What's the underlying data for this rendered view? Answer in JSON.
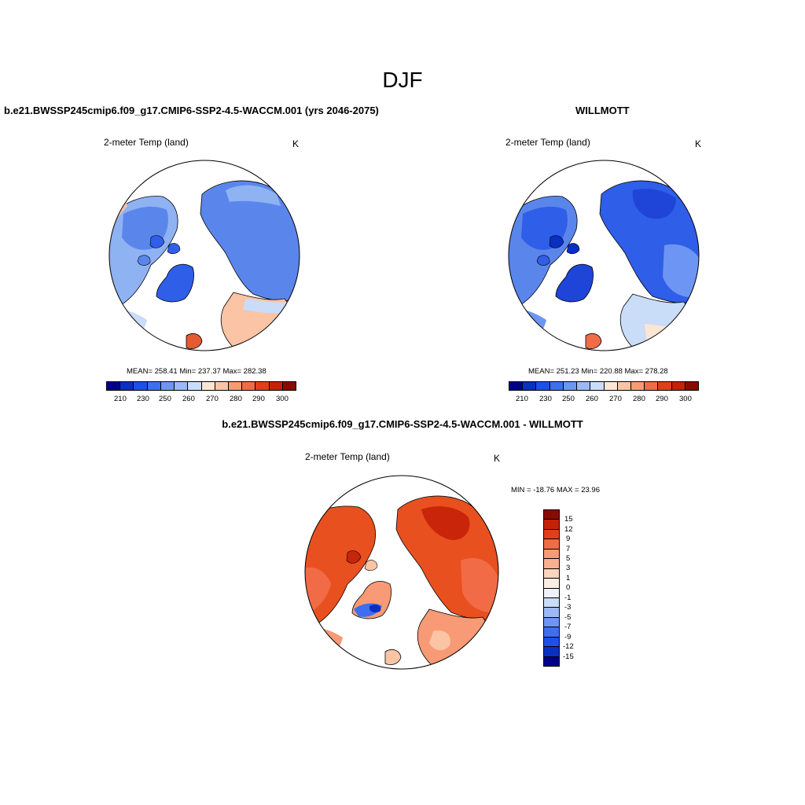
{
  "figure": {
    "title": "DJF",
    "panels": [
      {
        "title": "b.e21.BWSSP245cmip6.f09_g17.CMIP6-SSP2-4.5-WACCM.001 (yrs 2046-2075)",
        "variable": "2-meter Temp (land)",
        "units": "K",
        "stats": "MEAN= 258.41  Min= 237.37  Max= 282.38",
        "colorbar_labels": [
          "210",
          "230",
          "250",
          "260",
          "270",
          "280",
          "290",
          "300"
        ]
      },
      {
        "title": "WILLMOTT",
        "variable": "2-meter Temp (land)",
        "units": "K",
        "stats": "MEAN= 251.23  Min= 220.88  Max= 278.28",
        "colorbar_labels": [
          "210",
          "230",
          "250",
          "260",
          "270",
          "280",
          "290",
          "300"
        ]
      },
      {
        "title": "b.e21.BWSSP245cmip6.f09_g17.CMIP6-SSP2-4.5-WACCM.001 - WILLMOTT",
        "variable": "2-meter Temp (land)",
        "units": "K",
        "stats": "MIN = -18.76 MAX =  23.96",
        "colorbar_labels": [
          "15",
          "12",
          "9",
          "7",
          "5",
          "3",
          "1",
          "0",
          "-1",
          "-3",
          "-5",
          "-7",
          "-9",
          "-12",
          "-15"
        ]
      }
    ]
  },
  "colors": {
    "abs_scale": [
      "#00008b",
      "#0a2fc4",
      "#1e4fe8",
      "#3f6ef0",
      "#6d95f3",
      "#9cb9f5",
      "#c9dcf8",
      "#fde5d4",
      "#fbc4a5",
      "#f79a75",
      "#f26b47",
      "#e23e1c",
      "#c42106",
      "#8b0a00"
    ],
    "diff_scale": [
      "#8b0a00",
      "#c42106",
      "#e23e1c",
      "#f26b47",
      "#f79a75",
      "#fbb08f",
      "#fcd5bd",
      "#fdeee4",
      "#eef3fb",
      "#c9dcf8",
      "#9cb9f5",
      "#6d95f3",
      "#3f6ef0",
      "#1e4fe8",
      "#0a2fc4",
      "#00008b"
    ],
    "land_cold": "#4f7fe8",
    "land_cool": "#8fb2f2",
    "land_pale": "#c9dcf8",
    "land_warm": "#fbc4a5",
    "land_hot": "#e35a33",
    "diff_main": "#f0663d",
    "diff_dark": "#c8250a",
    "diff_light": "#f79a75"
  }
}
